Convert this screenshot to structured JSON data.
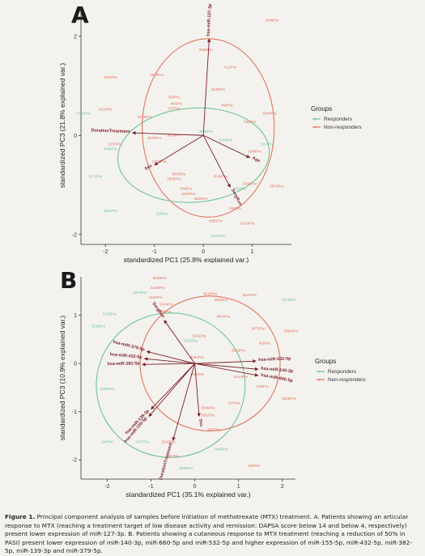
{
  "panels": [
    {
      "letter": "A",
      "chart_data": {
        "type": "scatter",
        "subtype": "pca-biplot",
        "xlabel": "standardized PC1 (25.8% explained var.)",
        "ylabel": "standardized PC3 (21.8% explained var.)",
        "xlim": [
          -2.5,
          1.8
        ],
        "ylim": [
          -2.2,
          2.6
        ],
        "xticks": [
          -2,
          -1,
          0,
          1
        ],
        "yticks": [
          -2,
          0,
          2
        ],
        "grid": false,
        "legend": {
          "title": "Groups",
          "position": "right",
          "entries": [
            "Responders",
            "Non-responders"
          ]
        },
        "colors": {
          "Responders": "#6fc49a",
          "Non-responders": "#e0735f",
          "loadings": "#7a1f2a"
        },
        "ellipses": [
          {
            "group": "Responders",
            "cx": -0.2,
            "cy": -0.4,
            "rx": 1.55,
            "ry": 0.95,
            "angle": -4
          },
          {
            "group": "Non-responders",
            "cx": 0.1,
            "cy": 0.15,
            "rx": 1.35,
            "ry": 1.8,
            "angle": 0
          }
        ],
        "loadings": [
          {
            "label": "hsa-miR-127-3p",
            "x": 0.12,
            "y": 1.95
          },
          {
            "label": "DurationTreatment",
            "x": -1.45,
            "y": 0.05
          },
          {
            "label": "Sex",
            "x": -1.0,
            "y": -0.6
          },
          {
            "label": "Age",
            "x": 0.95,
            "y": -0.45
          },
          {
            "label": "SergRun",
            "x": 0.55,
            "y": -1.05
          }
        ],
        "points": [
          {
            "label": "3498Pre",
            "x": 1.4,
            "y": 2.3,
            "group": "Non-responders"
          },
          {
            "label": "3083Pre",
            "x": 0.05,
            "y": 1.7,
            "group": "Non-responders"
          },
          {
            "label": "412Pre",
            "x": 0.55,
            "y": 1.35,
            "group": "Non-responders"
          },
          {
            "label": "3402Pre",
            "x": -1.9,
            "y": 1.15,
            "group": "Non-responders"
          },
          {
            "label": "3510Pre",
            "x": -0.95,
            "y": 1.2,
            "group": "Non-responders"
          },
          {
            "label": "3240Pre",
            "x": 0.3,
            "y": 0.9,
            "group": "Non-responders"
          },
          {
            "label": "428Pre",
            "x": -0.6,
            "y": 0.75,
            "group": "Non-responders"
          },
          {
            "label": "440Pre",
            "x": -0.55,
            "y": 0.62,
            "group": "Non-responders"
          },
          {
            "label": "537Pre",
            "x": -0.6,
            "y": 0.52,
            "group": "Non-responders"
          },
          {
            "label": "459Pre",
            "x": 0.48,
            "y": 0.58,
            "group": "Non-responders"
          },
          {
            "label": "3720Pre",
            "x": -1.2,
            "y": 0.35,
            "group": "Non-responders"
          },
          {
            "label": "3129Pre",
            "x": -2.0,
            "y": 0.5,
            "group": "Non-responders"
          },
          {
            "label": "3120Pre",
            "x": -2.45,
            "y": 0.42,
            "group": "Responders"
          },
          {
            "label": "3294Pre",
            "x": 1.35,
            "y": 0.42,
            "group": "Non-responders"
          },
          {
            "label": "848Pre",
            "x": 0.95,
            "y": 0.25,
            "group": "Non-responders"
          },
          {
            "label": "3875Pre",
            "x": 0.05,
            "y": 0.05,
            "group": "Responders"
          },
          {
            "label": "3233Pre",
            "x": -1.8,
            "y": -0.2,
            "group": "Non-responders"
          },
          {
            "label": "3419Pre",
            "x": -0.6,
            "y": -0.02,
            "group": "Non-responders"
          },
          {
            "label": "3570Pre",
            "x": -1.0,
            "y": -0.08,
            "group": "Non-responders"
          },
          {
            "label": "3468Pre",
            "x": -1.9,
            "y": -0.3,
            "group": "Responders"
          },
          {
            "label": "3333Pre",
            "x": 0.45,
            "y": -0.12,
            "group": "Responders"
          },
          {
            "label": "3348Pre",
            "x": 1.05,
            "y": -0.35,
            "group": "Non-responders"
          },
          {
            "label": "3119Pre",
            "x": 1.3,
            "y": -0.2,
            "group": "Responders"
          },
          {
            "label": "3276Pre",
            "x": -2.2,
            "y": -0.85,
            "group": "Responders"
          },
          {
            "label": "3103Pre",
            "x": -0.9,
            "y": -0.55,
            "group": "Non-responders"
          },
          {
            "label": "3693Pre",
            "x": -0.5,
            "y": -0.8,
            "group": "Non-responders"
          },
          {
            "label": "3538Pre",
            "x": -0.6,
            "y": -0.9,
            "group": "Non-responders"
          },
          {
            "label": "3546Pre",
            "x": 0.35,
            "y": -0.85,
            "group": "Non-responders"
          },
          {
            "label": "3436Pre",
            "x": 0.95,
            "y": -1.0,
            "group": "Non-responders"
          },
          {
            "label": "3543Pre",
            "x": 1.5,
            "y": -1.05,
            "group": "Non-responders"
          },
          {
            "label": "348Pre",
            "x": -0.35,
            "y": -1.1,
            "group": "Non-responders"
          },
          {
            "label": "3215Pre",
            "x": -0.3,
            "y": -1.2,
            "group": "Non-responders"
          },
          {
            "label": "331Pre",
            "x": 0.75,
            "y": -1.1,
            "group": "Responders"
          },
          {
            "label": "3081Pre",
            "x": -1.9,
            "y": -1.55,
            "group": "Responders"
          },
          {
            "label": "328Pre",
            "x": -0.85,
            "y": -1.6,
            "group": "Responders"
          },
          {
            "label": "3639Pre",
            "x": -0.05,
            "y": -1.3,
            "group": "Non-responders"
          },
          {
            "label": "450Pre",
            "x": 0.65,
            "y": -1.5,
            "group": "Non-responders"
          },
          {
            "label": "3419Pre",
            "x": 0.9,
            "y": -1.8,
            "group": "Non-responders"
          },
          {
            "label": "3496Pre",
            "x": 0.25,
            "y": -1.75,
            "group": "Non-responders"
          },
          {
            "label": "3374Pre",
            "x": 0.3,
            "y": -2.05,
            "group": "Responders"
          }
        ]
      }
    },
    {
      "letter": "B",
      "chart_data": {
        "type": "scatter",
        "subtype": "pca-biplot",
        "xlabel": "standardized PC1 (35.1% explained var.)",
        "ylabel": "standardized PC3 (10.9% explained var.)",
        "xlim": [
          -2.6,
          2.3
        ],
        "ylim": [
          -2.4,
          1.8
        ],
        "xticks": [
          -2,
          -1,
          0,
          1,
          2
        ],
        "yticks": [
          -2,
          -1,
          0,
          1
        ],
        "grid": false,
        "legend": {
          "title": "Groups",
          "position": "right",
          "entries": [
            "Responders",
            "Non-responders"
          ]
        },
        "colors": {
          "Responders": "#6fc49a",
          "Non-responders": "#e0735f",
          "loadings": "#7a1f2a"
        },
        "ellipses": [
          {
            "group": "Responders",
            "cx": -0.55,
            "cy": -0.45,
            "rx": 1.7,
            "ry": 1.5,
            "angle": 0
          },
          {
            "group": "Non-responders",
            "cx": 0.35,
            "cy": 0.0,
            "rx": 1.6,
            "ry": 1.4,
            "angle": 0
          }
        ],
        "loadings": [
          {
            "label": "hsa-miR-379-5p",
            "x": -1.1,
            "y": 0.25
          },
          {
            "label": "hsa-miR-432-5p",
            "x": -1.15,
            "y": 0.1
          },
          {
            "label": "hsa-miR-382-5p",
            "x": -1.2,
            "y": -0.02
          },
          {
            "label": "hsa-miR-532-5p",
            "x": 1.4,
            "y": 0.05
          },
          {
            "label": "hsa-miR-140-3p",
            "x": 1.45,
            "y": -0.12
          },
          {
            "label": "hsa-miR-660-5p",
            "x": 1.45,
            "y": -0.25
          },
          {
            "label": "hsa-miR-139-3p",
            "x": -1.0,
            "y": -0.95
          },
          {
            "label": "hsa-miR-155-5p",
            "x": -1.05,
            "y": -1.1
          },
          {
            "label": "DurationTreatment",
            "x": -0.5,
            "y": -1.6
          },
          {
            "label": "SergRun",
            "x": -0.7,
            "y": 0.9
          },
          {
            "label": "Sex",
            "x": 0.1,
            "y": -1.1
          }
        ],
        "points": [
          {
            "label": "3535Pre",
            "x": -0.8,
            "y": 1.75,
            "group": "Non-responders"
          },
          {
            "label": "3376Pre",
            "x": -1.25,
            "y": 1.45,
            "group": "Responders"
          },
          {
            "label": "3419Pre",
            "x": -0.85,
            "y": 1.55,
            "group": "Non-responders"
          },
          {
            "label": "3429Pre",
            "x": -0.9,
            "y": 1.35,
            "group": "Non-responders"
          },
          {
            "label": "3518Pre",
            "x": 0.35,
            "y": 1.42,
            "group": "Non-responders"
          },
          {
            "label": "3543Pre",
            "x": 1.25,
            "y": 1.4,
            "group": "Non-responders"
          },
          {
            "label": "3475Pre",
            "x": 2.15,
            "y": 1.3,
            "group": "Responders"
          },
          {
            "label": "3585Pre",
            "x": 0.6,
            "y": 1.3,
            "group": "Non-responders"
          },
          {
            "label": "3374Pre",
            "x": -0.65,
            "y": 1.2,
            "group": "Non-responders"
          },
          {
            "label": "3248Pre",
            "x": -0.7,
            "y": 1.05,
            "group": "Non-responders"
          },
          {
            "label": "3186Pre",
            "x": -1.95,
            "y": 1.0,
            "group": "Responders"
          },
          {
            "label": "3844Pre",
            "x": 0.65,
            "y": 0.95,
            "group": "Non-responders"
          },
          {
            "label": "3218Pre",
            "x": -2.2,
            "y": 0.75,
            "group": "Responders"
          },
          {
            "label": "3684Pre",
            "x": 2.2,
            "y": 0.65,
            "group": "Non-responders"
          },
          {
            "label": "3875Pre",
            "x": 1.45,
            "y": 0.7,
            "group": "Non-responders"
          },
          {
            "label": "3232Pre",
            "x": 0.1,
            "y": 0.55,
            "group": "Non-responders"
          },
          {
            "label": "450Pre",
            "x": 1.6,
            "y": 0.4,
            "group": "Non-responders"
          },
          {
            "label": "3143Pre",
            "x": 1.0,
            "y": 0.25,
            "group": "Non-responders"
          },
          {
            "label": "3120Pre",
            "x": -0.1,
            "y": 0.45,
            "group": "Responders"
          },
          {
            "label": "3063Pre",
            "x": 0.05,
            "y": 0.1,
            "group": "Non-responders"
          },
          {
            "label": "3630Pre",
            "x": 0.05,
            "y": -0.25,
            "group": "Non-responders"
          },
          {
            "label": "3014Pre",
            "x": 1.05,
            "y": -0.3,
            "group": "Non-responders"
          },
          {
            "label": "848Pre",
            "x": 1.55,
            "y": -0.5,
            "group": "Non-responders"
          },
          {
            "label": "3548Pre",
            "x": 2.15,
            "y": -0.75,
            "group": "Non-responders"
          },
          {
            "label": "3469Pre",
            "x": -2.0,
            "y": -0.55,
            "group": "Responders"
          },
          {
            "label": "3596Pre",
            "x": 0.3,
            "y": -0.95,
            "group": "Non-responders"
          },
          {
            "label": "337Pre",
            "x": 0.9,
            "y": -0.85,
            "group": "Non-responders"
          },
          {
            "label": "3352Pre",
            "x": 0.3,
            "y": -1.1,
            "group": "Non-responders"
          },
          {
            "label": "340Pre",
            "x": -2.0,
            "y": -1.65,
            "group": "Responders"
          },
          {
            "label": "3477Pre",
            "x": -1.2,
            "y": -1.65,
            "group": "Responders"
          },
          {
            "label": "3667Pre",
            "x": 0.45,
            "y": -1.4,
            "group": "Non-responders"
          },
          {
            "label": "3243Pre",
            "x": -0.6,
            "y": -1.65,
            "group": "Non-responders"
          },
          {
            "label": "3460Pre",
            "x": 0.6,
            "y": -1.8,
            "group": "Responders"
          },
          {
            "label": "331Pre",
            "x": -0.5,
            "y": -1.95,
            "group": "Non-responders"
          },
          {
            "label": "3099Pre",
            "x": -0.2,
            "y": -2.2,
            "group": "Responders"
          },
          {
            "label": "259Pre",
            "x": 1.35,
            "y": -2.15,
            "group": "Non-responders"
          }
        ]
      }
    }
  ],
  "caption": {
    "label": "Figure 1.",
    "text": " Principal component analysis of samples before initiation of methotrexate (MTX) treatment. A. Patients showing an articular response to MTX (reaching a treatment target of low disease activity and remission: DAPSA score below 14 and below 4, respectively) present lower expression of miR-127-3p. B. Patients showing a cutaneous response to MTX treatment (reaching a reduction of 50% in PASI) present lower expression of miR-140-3p, miR-660-5p and miR-532-5p and higher expression of miR-155-5p, miR-432-5p, miR-382-5p, miR-139-3p and miR-379-5p."
  }
}
